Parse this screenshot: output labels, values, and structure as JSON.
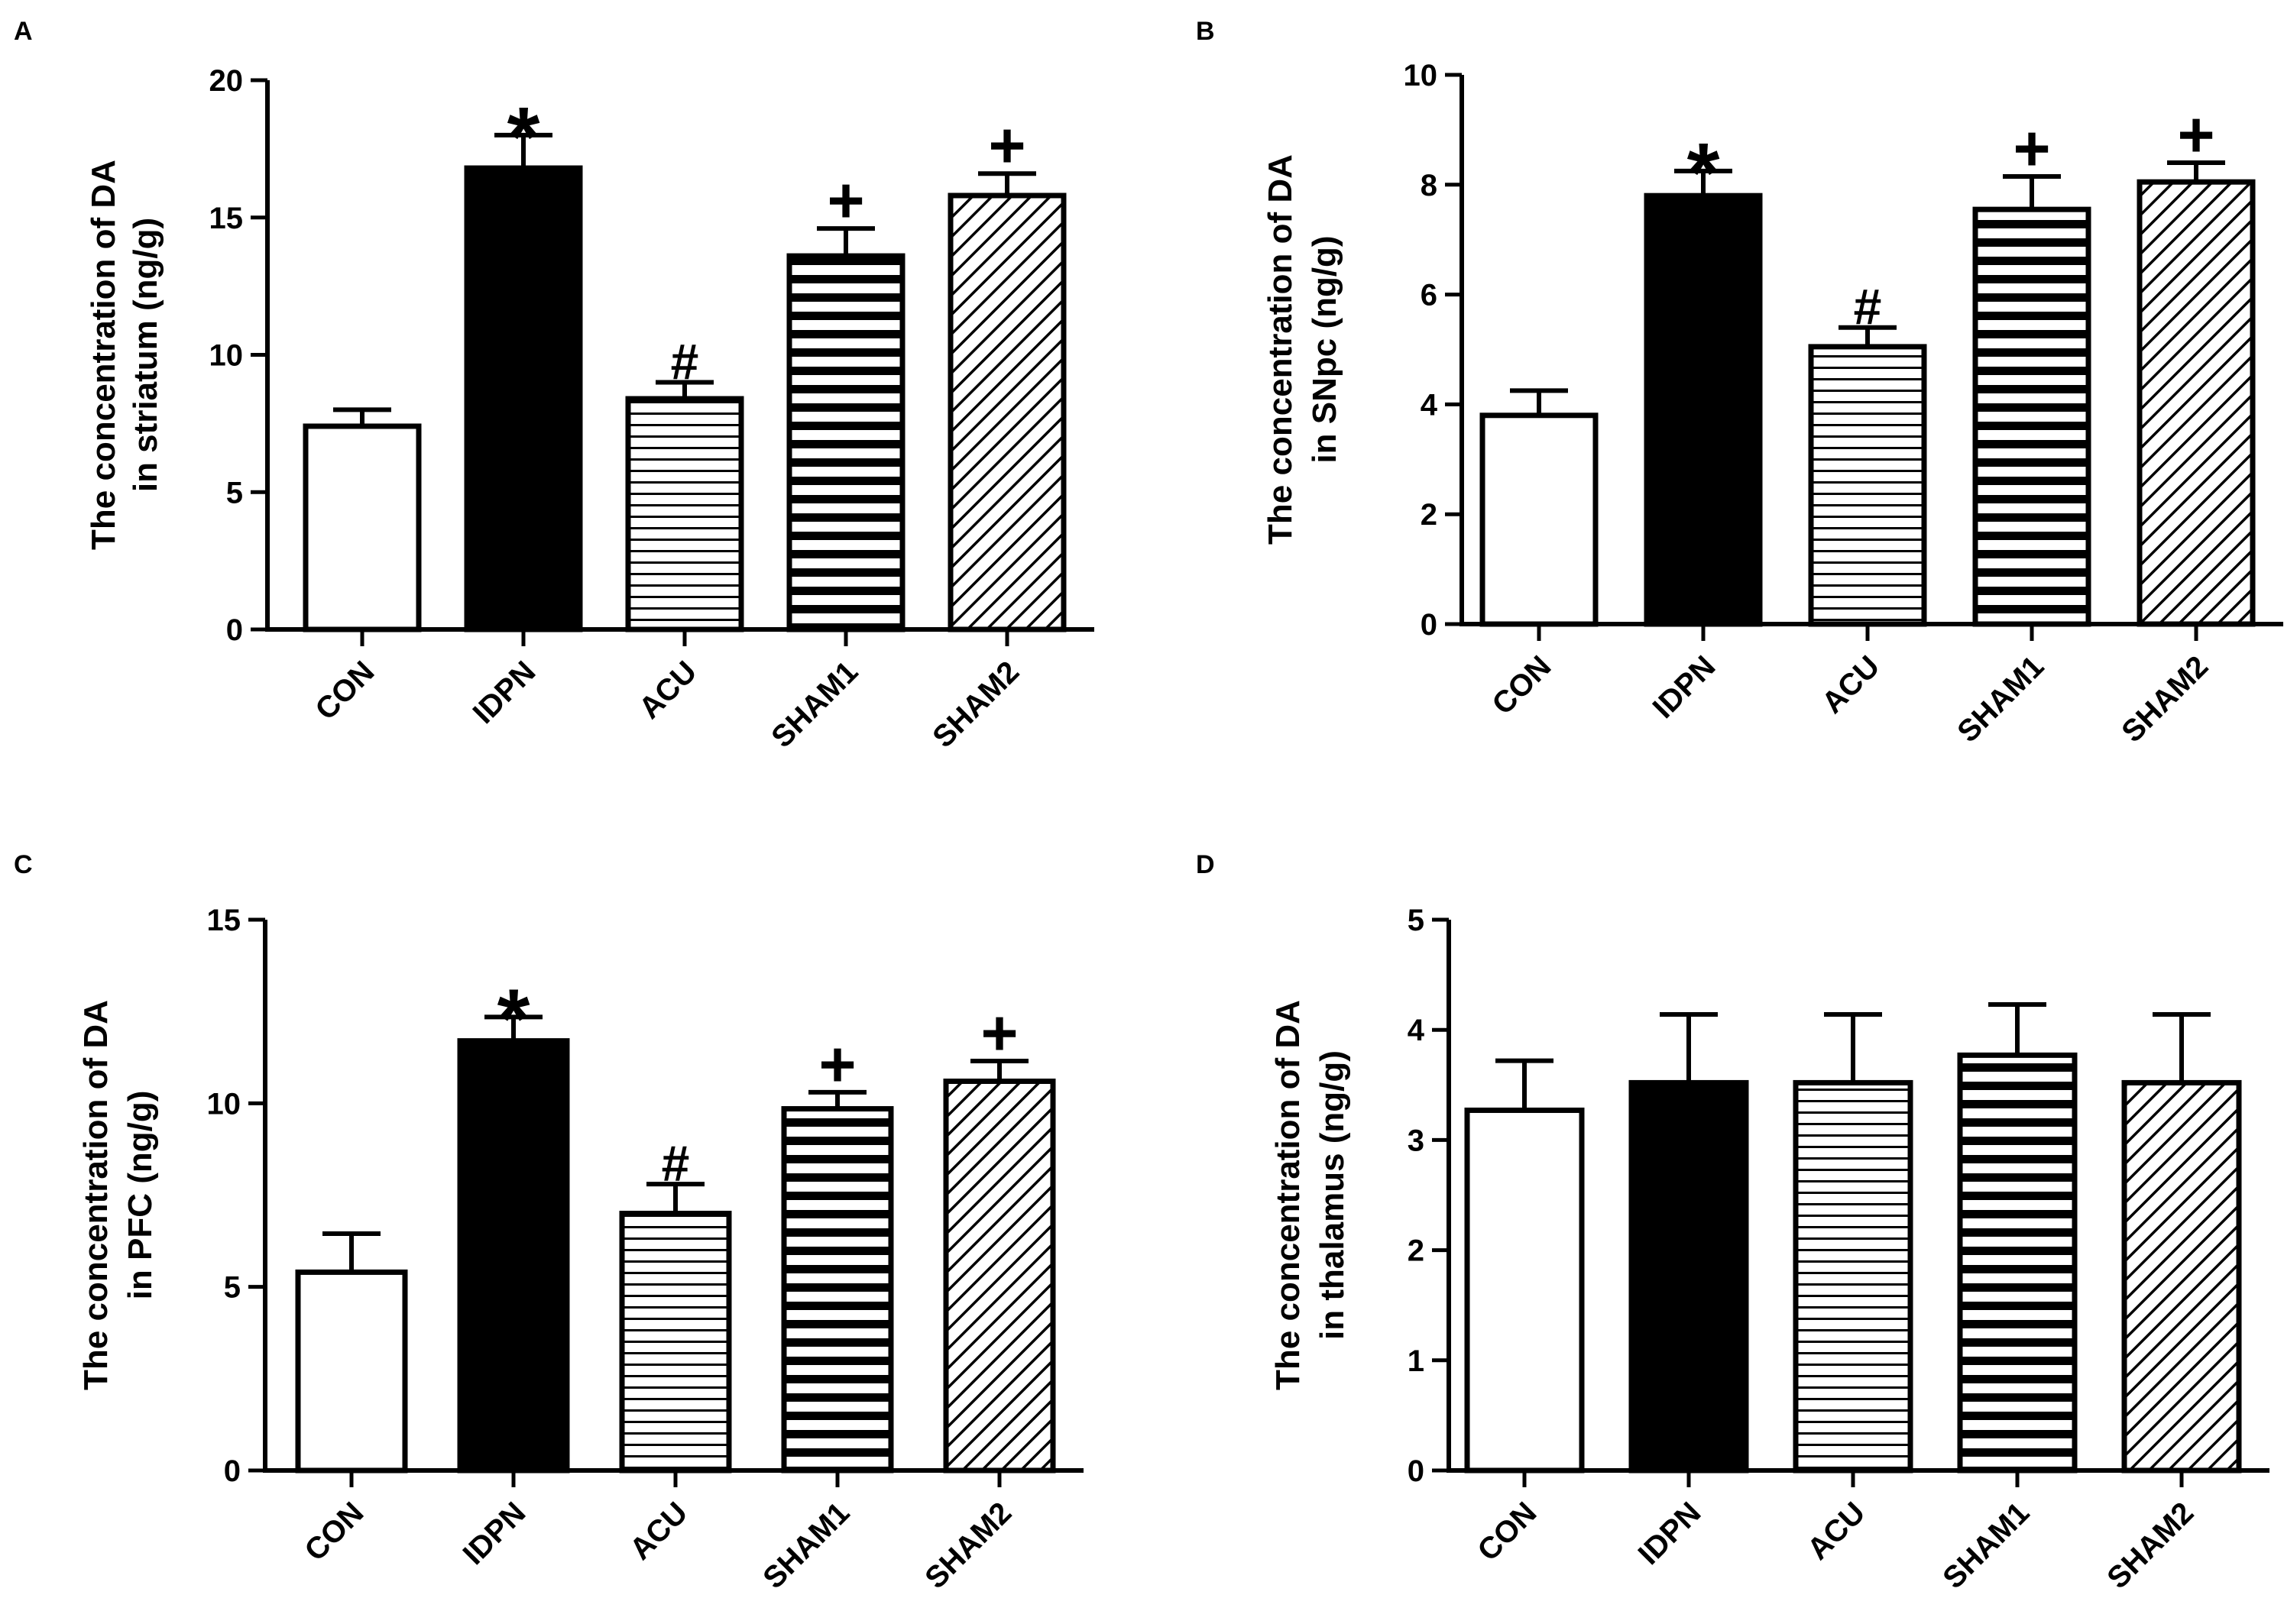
{
  "chart_data": [
    {
      "panel_label": "A",
      "type": "bar",
      "title": "",
      "ylabel_line1": "The concentration of DA",
      "ylabel_line2": "in striatum (ng/g)",
      "xlabel": "",
      "ylim": [
        0,
        20
      ],
      "yticks": [
        0,
        5,
        10,
        15,
        20
      ],
      "categories": [
        "CON",
        "IDPN",
        "ACU",
        "SHAM1",
        "SHAM2"
      ],
      "values": [
        7.4,
        16.8,
        8.4,
        13.6,
        15.8
      ],
      "errors": [
        0.6,
        1.2,
        0.6,
        1.0,
        0.8
      ],
      "annotations": [
        "",
        "*",
        "#",
        "+",
        "+"
      ],
      "patterns": [
        "empty",
        "solid",
        "hlines-thin",
        "hlines-thick",
        "diagonal"
      ]
    },
    {
      "panel_label": "B",
      "type": "bar",
      "title": "",
      "ylabel_line1": "The concentration of DA",
      "ylabel_line2": "in SNpc (ng/g)",
      "xlabel": "",
      "ylim": [
        0,
        10
      ],
      "yticks": [
        "0",
        "2",
        "4",
        "6",
        "8",
        "10"
      ],
      "categories": [
        "CON",
        "IDPN",
        "ACU",
        "SHAM1",
        "SHAM2"
      ],
      "values": [
        3.8,
        7.8,
        5.05,
        7.55,
        8.05
      ],
      "errors": [
        0.45,
        0.45,
        0.35,
        0.6,
        0.35
      ],
      "annotations": [
        "",
        "*",
        "#",
        "+",
        "+"
      ],
      "patterns": [
        "empty",
        "solid",
        "hlines-thin",
        "hlines-thick",
        "diagonal"
      ]
    },
    {
      "panel_label": "C",
      "type": "bar",
      "title": "",
      "ylabel_line1": "The concentration of DA",
      "ylabel_line2": "in PFC (ng/g)",
      "xlabel": "",
      "ylim": [
        0,
        15
      ],
      "yticks": [
        0,
        5,
        10,
        15
      ],
      "categories": [
        "CON",
        "IDPN",
        "ACU",
        "SHAM1",
        "SHAM2"
      ],
      "values": [
        5.4,
        11.7,
        7.0,
        9.85,
        10.6
      ],
      "errors": [
        1.05,
        0.65,
        0.8,
        0.45,
        0.55
      ],
      "annotations": [
        "",
        "*",
        "#",
        "+",
        "+"
      ],
      "patterns": [
        "empty",
        "solid",
        "hlines-thin",
        "hlines-thick",
        "diagonal"
      ]
    },
    {
      "panel_label": "D",
      "type": "bar",
      "title": "",
      "ylabel_line1": "The concentration of DA",
      "ylabel_line2": "in thalamus (ng/g)",
      "xlabel": "",
      "ylim": [
        0,
        5
      ],
      "yticks": [
        0,
        1,
        2,
        3,
        4,
        5
      ],
      "categories": [
        "CON",
        "IDPN",
        "ACU",
        "SHAM1",
        "SHAM2"
      ],
      "values": [
        3.27,
        3.52,
        3.52,
        3.77,
        3.52
      ],
      "errors": [
        0.45,
        0.62,
        0.62,
        0.46,
        0.62
      ],
      "annotations": [
        "",
        "",
        "",
        "",
        ""
      ],
      "patterns": [
        "empty",
        "solid",
        "hlines-thin",
        "hlines-thick",
        "diagonal"
      ]
    }
  ]
}
